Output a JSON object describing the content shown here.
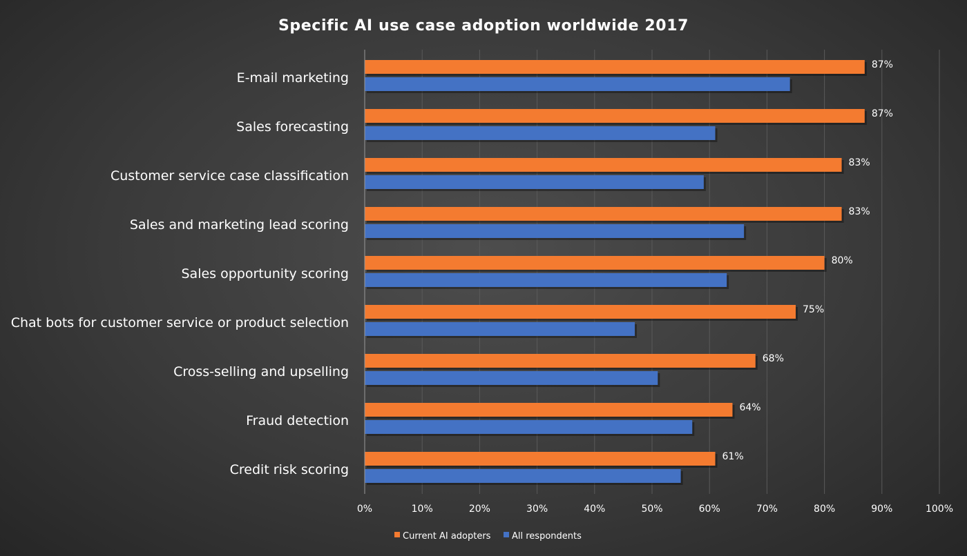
{
  "chart_data": {
    "type": "bar",
    "orientation": "horizontal",
    "title": "Specific AI use case adoption worldwide 2017",
    "categories": [
      "E-mail marketing",
      "Sales forecasting",
      "Customer service case classification",
      "Sales and marketing lead scoring",
      "Sales opportunity scoring",
      "Chat bots for customer service or product selection",
      "Cross-selling and upselling",
      "Fraud detection",
      "Credit risk scoring"
    ],
    "series": [
      {
        "name": "Current AI adopters",
        "color": "#f47b30",
        "values": [
          87,
          87,
          83,
          83,
          80,
          75,
          68,
          64,
          61
        ],
        "data_labels": [
          "87%",
          "87%",
          "83%",
          "83%",
          "80%",
          "75%",
          "68%",
          "64%",
          "61%"
        ]
      },
      {
        "name": "All respondents",
        "color": "#4472c4",
        "values": [
          74,
          61,
          59,
          66,
          63,
          47,
          51,
          57,
          55
        ]
      }
    ],
    "xlim": [
      0,
      100
    ],
    "x_ticks": [
      "0%",
      "10%",
      "20%",
      "30%",
      "40%",
      "50%",
      "60%",
      "70%",
      "80%",
      "90%",
      "100%"
    ],
    "xlabel": "",
    "ylabel": "",
    "grid": true,
    "legend_position": "bottom"
  }
}
